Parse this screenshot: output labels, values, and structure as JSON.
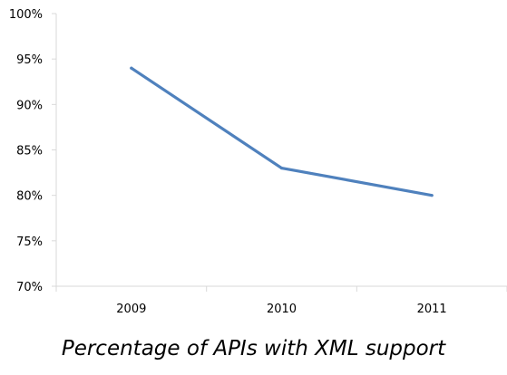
{
  "chart_data": {
    "type": "line",
    "title": "Percentage of APIs with XML support",
    "xlabel": "",
    "ylabel": "",
    "categories": [
      "2009",
      "2010",
      "2011"
    ],
    "series": [
      {
        "values": [
          94,
          83,
          80
        ],
        "color": "#4F81BD"
      }
    ],
    "ylim": [
      70,
      100
    ],
    "y_ticks": [
      70,
      75,
      80,
      85,
      90,
      95,
      100
    ],
    "y_tick_labels": [
      "70%",
      "75%",
      "80%",
      "85%",
      "90%",
      "95%",
      "100%"
    ],
    "grid": false,
    "legend": "none"
  },
  "colors": {
    "axis": "#D9D9D9",
    "series": "#4F81BD"
  }
}
